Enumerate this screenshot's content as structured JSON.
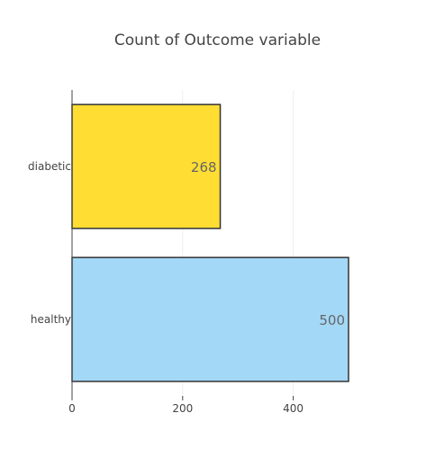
{
  "chart_data": {
    "type": "bar",
    "orientation": "horizontal",
    "title": "Count of Outcome variable",
    "xlabel": "",
    "ylabel": "",
    "categories": [
      "diabetic",
      "healthy"
    ],
    "values": [
      268,
      500
    ],
    "data_labels": [
      "268",
      "500"
    ],
    "bar_colors": [
      "#ffdd33",
      "#a3d8f7"
    ],
    "bar_outline_color": "#333333",
    "xlim": [
      0,
      500
    ],
    "x_ticks": [
      0,
      200,
      400
    ],
    "grid": true,
    "legend": "none"
  }
}
